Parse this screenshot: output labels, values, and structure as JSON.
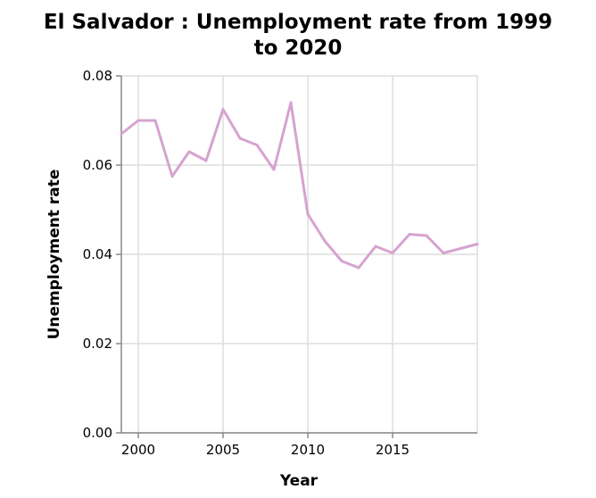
{
  "chart_data": {
    "type": "line",
    "title_lines": [
      "El Salvador : Unemployment rate from 1999",
      "to 2020"
    ],
    "xlabel": "Year",
    "ylabel": "Unemployment rate",
    "xlim": [
      1999,
      2020
    ],
    "ylim": [
      0,
      0.08
    ],
    "x_ticks": [
      2000,
      2005,
      2010,
      2015
    ],
    "y_ticks": [
      "0.00",
      "0.02",
      "0.04",
      "0.06",
      "0.08"
    ],
    "grid": true,
    "line_color": "#d6a3cf",
    "series": [
      {
        "x": [
          1999,
          2000,
          2001,
          2002,
          2003,
          2004,
          2005,
          2006,
          2007,
          2008,
          2009,
          2010,
          2011,
          2012,
          2013,
          2014,
          2015,
          2016,
          2017,
          2018,
          2019,
          2020
        ],
        "values": [
          0.067,
          0.07,
          0.07,
          0.0575,
          0.063,
          0.061,
          0.0725,
          0.066,
          0.0645,
          0.059,
          0.074,
          0.049,
          0.043,
          0.0385,
          0.037,
          0.0418,
          0.0403,
          0.0445,
          0.0442,
          0.0403,
          0.0413,
          0.0423
        ]
      }
    ]
  }
}
